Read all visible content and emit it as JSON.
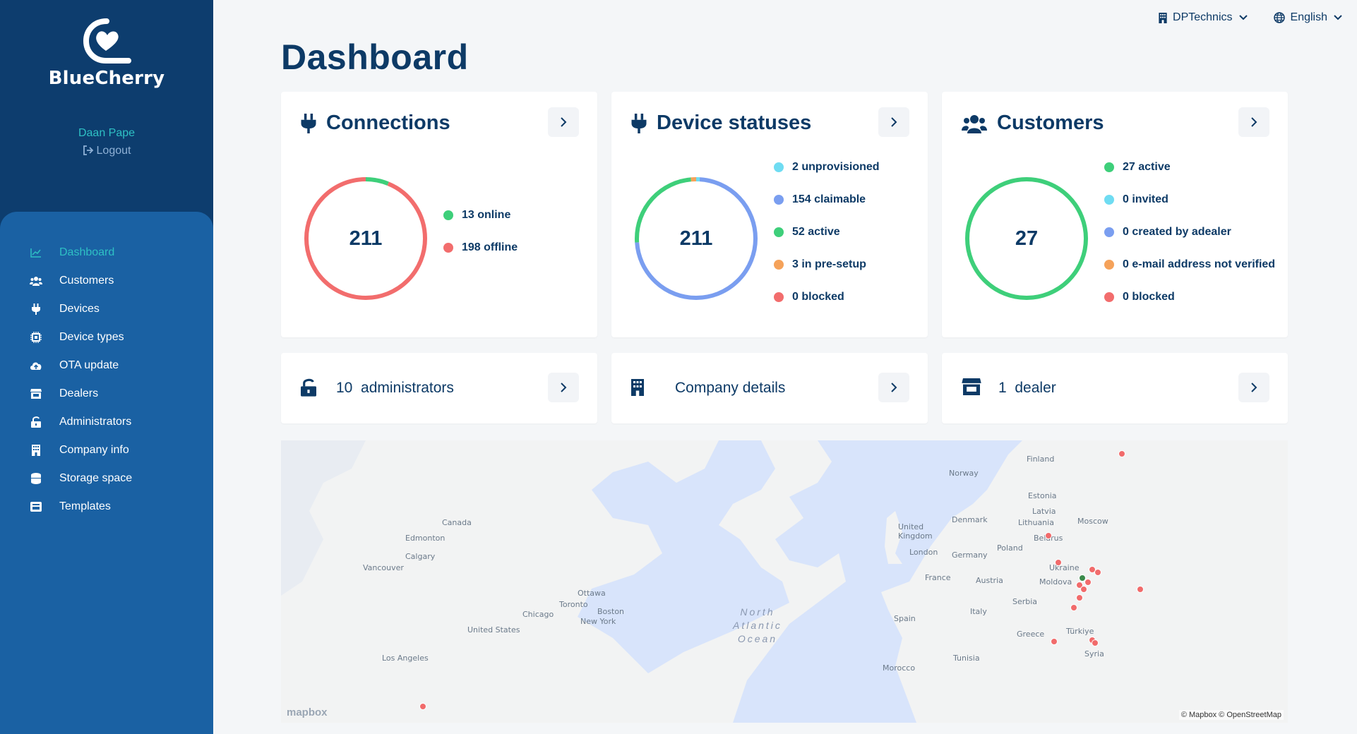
{
  "app": {
    "name": "BlueCherry"
  },
  "user": {
    "name": "Daan Pape",
    "logout": "Logout"
  },
  "topbar": {
    "company": "DPTechnics",
    "language": "English"
  },
  "page": {
    "title": "Dashboard"
  },
  "nav": {
    "items": [
      {
        "label": "Dashboard",
        "icon": "chart-line-icon",
        "active": true
      },
      {
        "label": "Customers",
        "icon": "users-icon"
      },
      {
        "label": "Devices",
        "icon": "plug-icon"
      },
      {
        "label": "Device types",
        "icon": "chip-icon"
      },
      {
        "label": "OTA update",
        "icon": "cloud-upload-icon"
      },
      {
        "label": "Dealers",
        "icon": "store-icon"
      },
      {
        "label": "Administrators",
        "icon": "lock-icon"
      },
      {
        "label": "Company info",
        "icon": "building-icon"
      },
      {
        "label": "Storage space",
        "icon": "database-icon"
      },
      {
        "label": "Templates",
        "icon": "template-icon"
      }
    ]
  },
  "colors": {
    "online": "#3ecf7a",
    "offline": "#f26d6d",
    "unprovisioned": "#6fdcf2",
    "claimable": "#7a9ef0",
    "active": "#3ecf7a",
    "presetup": "#f5a25a",
    "blocked": "#f26d6d",
    "invited": "#6fdcf2",
    "created_by_dealer": "#7a9ef0",
    "email_not_verified": "#f5a25a"
  },
  "connections": {
    "title": "Connections",
    "total": "211",
    "legend": [
      {
        "key": "online",
        "label": "13 online",
        "value": 13
      },
      {
        "key": "offline",
        "label": "198 offline",
        "value": 198
      }
    ]
  },
  "device_statuses": {
    "title": "Device statuses",
    "total": "211",
    "legend": [
      {
        "key": "unprovisioned",
        "label": "2 unprovisioned",
        "value": 2
      },
      {
        "key": "claimable",
        "label": "154 claimable",
        "value": 154
      },
      {
        "key": "active",
        "label": "52 active",
        "value": 52
      },
      {
        "key": "presetup",
        "label": "3 in pre-setup",
        "value": 3
      },
      {
        "key": "blocked",
        "label": "0 blocked",
        "value": 0
      }
    ]
  },
  "customers": {
    "title": "Customers",
    "total": "27",
    "legend": [
      {
        "key": "active",
        "label": "27 active",
        "value": 27
      },
      {
        "key": "invited",
        "label": "0 invited",
        "value": 0
      },
      {
        "key": "created_by_dealer",
        "label": "0 created by adealer",
        "value": 0
      },
      {
        "key": "email_not_verified",
        "label": "0 e-mail address not verified",
        "value": 0
      },
      {
        "key": "blocked",
        "label": "0 blocked",
        "value": 0
      }
    ]
  },
  "summary": {
    "administrators": {
      "count": "10",
      "label": "administrators"
    },
    "company": {
      "label": "Company details"
    },
    "dealers": {
      "count": "1",
      "label": "dealer"
    }
  },
  "map": {
    "ocean": [
      "North",
      "Atlantic",
      "Ocean"
    ],
    "labels": [
      "Finland",
      "Norway",
      "Estonia",
      "Latvia",
      "Lithuania",
      "Moscow",
      "Denmark",
      "United",
      "Kingdom",
      "Belarus",
      "Poland",
      "London",
      "Germany",
      "Ukraine",
      "Moldova",
      "France",
      "Austria",
      "Serbia",
      "Italy",
      "Spain",
      "Greece",
      "Türkiye",
      "Syria",
      "Tunisia",
      "Morocco",
      "Canada",
      "Edmonton",
      "Calgary",
      "Vancouver",
      "Ottawa",
      "Toronto",
      "Boston",
      "Chicago",
      "New York",
      "United States",
      "Los Angeles"
    ],
    "logo": "mapbox",
    "attribution": "© Mapbox © OpenStreetMap"
  }
}
